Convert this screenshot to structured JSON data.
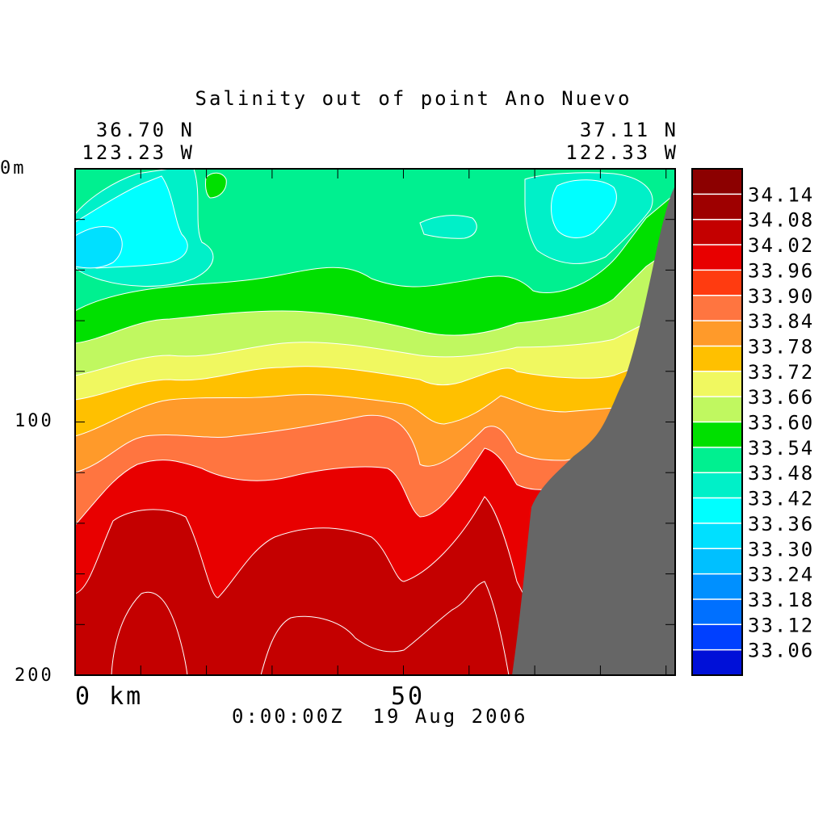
{
  "chart_data": {
    "type": "heatmap",
    "title": "Salinity out of point Ano Nuevo",
    "start": {
      "lat": "36.70 N",
      "lon": "123.23 W"
    },
    "end": {
      "lat": "37.11 N",
      "lon": "122.33 W"
    },
    "y_axis": {
      "top_label": "0m",
      "labels": [
        "100",
        "200"
      ],
      "range": [
        0,
        200
      ],
      "inverted": true
    },
    "x_axis": {
      "labels": [
        "0 km",
        "50"
      ]
    },
    "timestamp": "0:00:00Z  19 Aug 2006",
    "colorbar": {
      "levels": [
        "34.14",
        "34.08",
        "34.02",
        "33.96",
        "33.90",
        "33.84",
        "33.78",
        "33.72",
        "33.66",
        "33.60",
        "33.54",
        "33.48",
        "33.42",
        "33.36",
        "33.30",
        "33.24",
        "33.18",
        "33.12",
        "33.06"
      ],
      "colors": [
        "#9e0000",
        "#c40000",
        "#e80000",
        "#ff3b10",
        "#ff7540",
        "#ff9a2a",
        "#ffc000",
        "#f0f860",
        "#c0f860",
        "#00e000",
        "#00f090",
        "#00f0c8",
        "#00ffff",
        "#00e0ff",
        "#00c0ff",
        "#0090ff",
        "#0070ff",
        "#0040ff",
        "#0010d8"
      ]
    },
    "land_color": "#666666"
  }
}
